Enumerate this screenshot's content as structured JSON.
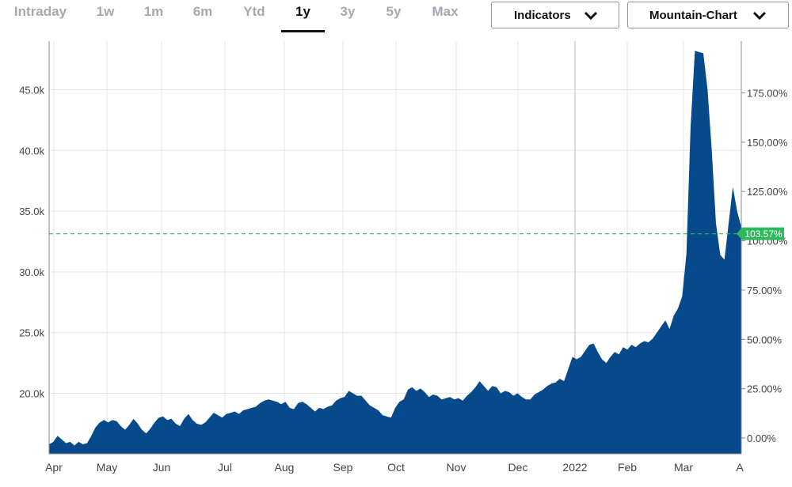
{
  "toolbar": {
    "tabs": [
      {
        "label": "Intraday",
        "active": false
      },
      {
        "label": "1w",
        "active": false
      },
      {
        "label": "1m",
        "active": false
      },
      {
        "label": "6m",
        "active": false
      },
      {
        "label": "Ytd",
        "active": false
      },
      {
        "label": "1y",
        "active": true
      },
      {
        "label": "3y",
        "active": false
      },
      {
        "label": "5y",
        "active": false
      },
      {
        "label": "Max",
        "active": false
      }
    ],
    "indicators_label": "Indicators",
    "chart_type_label": "Mountain-Chart"
  },
  "colors": {
    "fill": "#064a8b",
    "grid": "#e6e6e6",
    "reference": "#2eb85c",
    "badge": "#2eb85c"
  },
  "chart_data": {
    "type": "area",
    "x_ticks": [
      "Apr",
      "May",
      "Jun",
      "Jul",
      "Aug",
      "Sep",
      "Oct",
      "Nov",
      "Dec",
      "2022",
      "Feb",
      "Mar",
      "A"
    ],
    "y_left": {
      "ticks": [
        20000,
        25000,
        30000,
        35000,
        40000,
        45000
      ],
      "tick_labels": [
        "20.0k",
        "25.0k",
        "30.0k",
        "35.0k",
        "40.0k",
        "45.0k"
      ]
    },
    "y_right": {
      "ticks": [
        0,
        25,
        50,
        75,
        100,
        125,
        150,
        175
      ],
      "tick_labels": [
        "0.00%",
        "25.00%",
        "50.00%",
        "75.00%",
        "100.00%",
        "125.00%",
        "150.00%",
        "175.00%"
      ]
    },
    "ylim": [
      15000,
      49500
    ],
    "reference_label": "103.57%",
    "reference_pct": 103.57,
    "grid": true,
    "series": [
      {
        "values": [
          15800,
          16000,
          16500,
          16200,
          15900,
          16000,
          15700,
          16000,
          15800,
          15900,
          16500,
          17200,
          17600,
          17800,
          17600,
          17800,
          17700,
          17300,
          17000,
          17400,
          17900,
          17500,
          17000,
          16700,
          17100,
          17600,
          18000,
          18100,
          17800,
          17900,
          17500,
          17300,
          17900,
          18300,
          17800,
          17500,
          17400,
          17600,
          18000,
          18400,
          18200,
          18000,
          18300,
          18400,
          18500,
          18300,
          18600,
          18700,
          18800,
          18900,
          19200,
          19400,
          19500,
          19400,
          19300,
          19100,
          19300,
          18800,
          18700,
          19200,
          19300,
          19100,
          18800,
          18500,
          18800,
          18700,
          18900,
          19000,
          19400,
          19600,
          19700,
          20200,
          20000,
          19800,
          19800,
          19400,
          19000,
          18800,
          18600,
          18200,
          18100,
          18000,
          18800,
          19300,
          19500,
          20300,
          20500,
          20200,
          20400,
          20100,
          19700,
          19900,
          19800,
          19500,
          19600,
          19700,
          19500,
          19600,
          19400,
          19800,
          20100,
          20500,
          21000,
          20600,
          20200,
          20600,
          20500,
          20000,
          20200,
          20100,
          19800,
          20000,
          19700,
          19500,
          19500,
          19900,
          20100,
          20300,
          20600,
          20800,
          20900,
          21200,
          21000,
          22000,
          23000,
          22800,
          23000,
          23500,
          24000,
          24100,
          23400,
          22800,
          22500,
          23000,
          23400,
          23200,
          23800,
          23600,
          24000,
          23800,
          24100,
          24300,
          24200,
          24500,
          25000,
          25500,
          26000,
          25300,
          26400,
          27000,
          28000,
          31500,
          42000,
          48200,
          48100,
          48000,
          45000,
          40000,
          34000,
          31400,
          31000,
          34000,
          37000,
          35000,
          33700
        ]
      }
    ]
  }
}
